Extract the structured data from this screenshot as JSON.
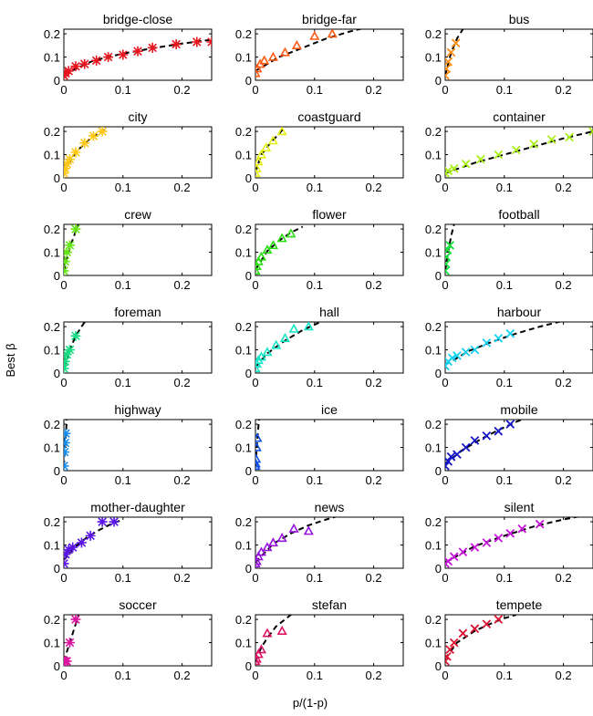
{
  "chart_data": {
    "type": "scatter",
    "xlabel": "p/(1-p)",
    "ylabel": "Best β",
    "xlim": [
      0,
      0.25
    ],
    "ylim": [
      0,
      0.22
    ],
    "xticks": [
      "0",
      "0.1",
      "0.2"
    ],
    "yticks": [
      "0",
      "0.1",
      "0.2"
    ],
    "grid": false,
    "panels": [
      {
        "name": "bridge-close",
        "marker": "star",
        "color": "#e8141e",
        "x": [
          0.0,
          0.003,
          0.008,
          0.02,
          0.035,
          0.055,
          0.075,
          0.1,
          0.125,
          0.15,
          0.19,
          0.225,
          0.25
        ],
        "y": [
          0.02,
          0.03,
          0.04,
          0.06,
          0.07,
          0.085,
          0.1,
          0.11,
          0.125,
          0.14,
          0.155,
          0.165,
          0.165
        ],
        "fit": [
          [
            0,
            0.025
          ],
          [
            0.05,
            0.085
          ],
          [
            0.1,
            0.115
          ],
          [
            0.15,
            0.138
          ],
          [
            0.2,
            0.158
          ],
          [
            0.25,
            0.175
          ]
        ]
      },
      {
        "name": "bridge-far",
        "marker": "triangle",
        "color": "#ff5a14",
        "x": [
          0.0,
          0.003,
          0.008,
          0.015,
          0.03,
          0.05,
          0.07,
          0.1,
          0.13
        ],
        "y": [
          0.03,
          0.05,
          0.07,
          0.085,
          0.1,
          0.12,
          0.15,
          0.19,
          0.2
        ],
        "fit": [
          [
            0,
            0.04
          ],
          [
            0.04,
            0.1
          ],
          [
            0.08,
            0.14
          ],
          [
            0.12,
            0.18
          ],
          [
            0.16,
            0.21
          ],
          [
            0.2,
            0.235
          ]
        ]
      },
      {
        "name": "bus",
        "marker": "cross",
        "color": "#ff8c14",
        "x": [
          0.0,
          0.002,
          0.005,
          0.01,
          0.018
        ],
        "y": [
          0.02,
          0.05,
          0.08,
          0.12,
          0.16
        ],
        "fit": [
          [
            0,
            0.02
          ],
          [
            0.01,
            0.12
          ],
          [
            0.02,
            0.18
          ],
          [
            0.03,
            0.22
          ],
          [
            0.035,
            0.24
          ]
        ]
      },
      {
        "name": "city",
        "marker": "star",
        "color": "#ffc814",
        "x": [
          0.0,
          0.002,
          0.005,
          0.01,
          0.02,
          0.035,
          0.05,
          0.065
        ],
        "y": [
          0.02,
          0.04,
          0.06,
          0.08,
          0.11,
          0.15,
          0.18,
          0.2
        ],
        "fit": [
          [
            0,
            0.025
          ],
          [
            0.02,
            0.11
          ],
          [
            0.04,
            0.16
          ],
          [
            0.06,
            0.195
          ],
          [
            0.07,
            0.21
          ]
        ]
      },
      {
        "name": "coastguard",
        "marker": "triangle",
        "color": "#e6f014",
        "x": [
          0.0,
          0.002,
          0.005,
          0.01,
          0.018,
          0.03,
          0.045
        ],
        "y": [
          0.02,
          0.04,
          0.07,
          0.1,
          0.13,
          0.16,
          0.2
        ],
        "fit": [
          [
            0,
            0.025
          ],
          [
            0.01,
            0.1
          ],
          [
            0.025,
            0.15
          ],
          [
            0.04,
            0.19
          ],
          [
            0.05,
            0.22
          ]
        ]
      },
      {
        "name": "container",
        "marker": "cross",
        "color": "#aaf014",
        "x": [
          0.0,
          0.005,
          0.015,
          0.035,
          0.06,
          0.09,
          0.12,
          0.15,
          0.18,
          0.21,
          0.25
        ],
        "y": [
          0.02,
          0.03,
          0.04,
          0.06,
          0.08,
          0.1,
          0.12,
          0.145,
          0.165,
          0.175,
          0.2
        ],
        "fit": [
          [
            0,
            0.02
          ],
          [
            0.05,
            0.065
          ],
          [
            0.1,
            0.1
          ],
          [
            0.15,
            0.135
          ],
          [
            0.2,
            0.17
          ],
          [
            0.25,
            0.2
          ]
        ]
      },
      {
        "name": "crew",
        "marker": "star",
        "color": "#64e614",
        "x": [
          0.0,
          0.002,
          0.005,
          0.01,
          0.02
        ],
        "y": [
          0.02,
          0.06,
          0.1,
          0.13,
          0.2
        ],
        "fit": [
          [
            0,
            0.02
          ],
          [
            0.01,
            0.12
          ],
          [
            0.02,
            0.19
          ],
          [
            0.025,
            0.22
          ],
          [
            0.028,
            0.235
          ]
        ]
      },
      {
        "name": "flower",
        "marker": "triangle",
        "color": "#2ade14",
        "x": [
          0.0,
          0.002,
          0.005,
          0.01,
          0.02,
          0.03,
          0.045,
          0.06
        ],
        "y": [
          0.02,
          0.04,
          0.06,
          0.08,
          0.11,
          0.13,
          0.16,
          0.18
        ],
        "fit": [
          [
            0,
            0.025
          ],
          [
            0.02,
            0.105
          ],
          [
            0.04,
            0.15
          ],
          [
            0.06,
            0.185
          ],
          [
            0.08,
            0.21
          ]
        ]
      },
      {
        "name": "football",
        "marker": "cross",
        "color": "#14dc3c",
        "x": [
          0.0,
          0.001,
          0.002,
          0.004,
          0.008
        ],
        "y": [
          0.02,
          0.05,
          0.08,
          0.11,
          0.13
        ],
        "fit": [
          [
            0,
            0.02
          ],
          [
            0.005,
            0.1
          ],
          [
            0.01,
            0.17
          ],
          [
            0.015,
            0.22
          ],
          [
            0.018,
            0.245
          ]
        ]
      },
      {
        "name": "foreman",
        "marker": "star",
        "color": "#14dc82",
        "x": [
          0.0,
          0.002,
          0.005,
          0.01,
          0.02
        ],
        "y": [
          0.02,
          0.05,
          0.08,
          0.1,
          0.16
        ],
        "fit": [
          [
            0,
            0.02
          ],
          [
            0.01,
            0.1
          ],
          [
            0.02,
            0.16
          ],
          [
            0.03,
            0.2
          ],
          [
            0.038,
            0.23
          ]
        ]
      },
      {
        "name": "hall",
        "marker": "triangle",
        "color": "#14e6c8",
        "x": [
          0.0,
          0.002,
          0.005,
          0.01,
          0.02,
          0.035,
          0.05,
          0.065,
          0.09
        ],
        "y": [
          0.02,
          0.04,
          0.055,
          0.07,
          0.09,
          0.12,
          0.15,
          0.19,
          0.2
        ],
        "fit": [
          [
            0,
            0.025
          ],
          [
            0.02,
            0.085
          ],
          [
            0.05,
            0.14
          ],
          [
            0.08,
            0.185
          ],
          [
            0.11,
            0.22
          ]
        ]
      },
      {
        "name": "harbour",
        "marker": "cross",
        "color": "#14d2f0",
        "x": [
          0.0,
          0.005,
          0.012,
          0.02,
          0.035,
          0.05,
          0.07,
          0.09,
          0.11
        ],
        "y": [
          0.03,
          0.05,
          0.065,
          0.075,
          0.09,
          0.1,
          0.13,
          0.15,
          0.17
        ],
        "fit": [
          [
            0,
            0.035
          ],
          [
            0.04,
            0.095
          ],
          [
            0.08,
            0.135
          ],
          [
            0.12,
            0.17
          ],
          [
            0.16,
            0.2
          ],
          [
            0.2,
            0.225
          ]
        ]
      },
      {
        "name": "highway",
        "marker": "star",
        "color": "#148cf0",
        "x": [
          0.0,
          0.001,
          0.002,
          0.003
        ],
        "y": [
          0.02,
          0.08,
          0.12,
          0.16
        ],
        "fit": [
          [
            0,
            0.02
          ],
          [
            0.002,
            0.1
          ],
          [
            0.004,
            0.18
          ],
          [
            0.005,
            0.22
          ],
          [
            0.0055,
            0.24
          ]
        ]
      },
      {
        "name": "ice",
        "marker": "triangle",
        "color": "#1450e6",
        "x": [
          0.0,
          0.0005,
          0.001,
          0.002,
          0.003
        ],
        "y": [
          0.02,
          0.03,
          0.05,
          0.1,
          0.14
        ],
        "fit": [
          [
            0,
            0.02
          ],
          [
            0.002,
            0.09
          ],
          [
            0.004,
            0.16
          ],
          [
            0.006,
            0.22
          ],
          [
            0.007,
            0.245
          ]
        ]
      },
      {
        "name": "mobile",
        "marker": "cross",
        "color": "#1414c8",
        "x": [
          0.0,
          0.005,
          0.01,
          0.02,
          0.035,
          0.05,
          0.07,
          0.09,
          0.11
        ],
        "y": [
          0.02,
          0.04,
          0.06,
          0.07,
          0.1,
          0.13,
          0.15,
          0.17,
          0.2
        ],
        "fit": [
          [
            0,
            0.03
          ],
          [
            0.03,
            0.09
          ],
          [
            0.06,
            0.135
          ],
          [
            0.09,
            0.175
          ],
          [
            0.12,
            0.21
          ],
          [
            0.14,
            0.23
          ]
        ]
      },
      {
        "name": "mother-daughter",
        "marker": "star",
        "color": "#5a14e6",
        "x": [
          0.0,
          0.003,
          0.008,
          0.015,
          0.03,
          0.045,
          0.065,
          0.085
        ],
        "y": [
          0.02,
          0.06,
          0.08,
          0.09,
          0.11,
          0.14,
          0.2,
          0.2
        ],
        "fit": [
          [
            0,
            0.035
          ],
          [
            0.02,
            0.095
          ],
          [
            0.04,
            0.135
          ],
          [
            0.06,
            0.165
          ],
          [
            0.08,
            0.19
          ],
          [
            0.1,
            0.21
          ]
        ]
      },
      {
        "name": "news",
        "marker": "triangle",
        "color": "#9614dc",
        "x": [
          0.0,
          0.002,
          0.005,
          0.01,
          0.02,
          0.03,
          0.045,
          0.065,
          0.09
        ],
        "y": [
          0.02,
          0.03,
          0.05,
          0.07,
          0.09,
          0.11,
          0.13,
          0.17,
          0.16
        ],
        "fit": [
          [
            0,
            0.025
          ],
          [
            0.03,
            0.105
          ],
          [
            0.06,
            0.15
          ],
          [
            0.09,
            0.185
          ],
          [
            0.12,
            0.21
          ],
          [
            0.14,
            0.225
          ]
        ]
      },
      {
        "name": "silent",
        "marker": "cross",
        "color": "#c814dc",
        "x": [
          0.0,
          0.005,
          0.015,
          0.03,
          0.05,
          0.07,
          0.09,
          0.11,
          0.13,
          0.16
        ],
        "y": [
          0.02,
          0.03,
          0.05,
          0.07,
          0.09,
          0.11,
          0.13,
          0.15,
          0.17,
          0.19
        ],
        "fit": [
          [
            0,
            0.025
          ],
          [
            0.05,
            0.095
          ],
          [
            0.1,
            0.14
          ],
          [
            0.15,
            0.18
          ],
          [
            0.2,
            0.21
          ],
          [
            0.24,
            0.23
          ]
        ]
      },
      {
        "name": "soccer",
        "marker": "star",
        "color": "#dc14a0",
        "x": [
          0.0,
          0.002,
          0.005,
          0.01,
          0.02
        ],
        "y": [
          0.02,
          0.02,
          0.02,
          0.1,
          0.2
        ],
        "fit": [
          [
            0,
            0.02
          ],
          [
            0.01,
            0.1
          ],
          [
            0.02,
            0.18
          ],
          [
            0.025,
            0.22
          ],
          [
            0.028,
            0.24
          ]
        ]
      },
      {
        "name": "stefan",
        "marker": "triangle",
        "color": "#dc1464",
        "x": [
          0.0,
          0.002,
          0.005,
          0.01,
          0.02,
          0.045
        ],
        "y": [
          0.02,
          0.03,
          0.05,
          0.07,
          0.14,
          0.15
        ],
        "fit": [
          [
            0,
            0.02
          ],
          [
            0.01,
            0.08
          ],
          [
            0.02,
            0.12
          ],
          [
            0.035,
            0.17
          ],
          [
            0.05,
            0.2
          ],
          [
            0.06,
            0.22
          ]
        ]
      },
      {
        "name": "tempete",
        "marker": "cross",
        "color": "#dc1432",
        "x": [
          0.0,
          0.003,
          0.008,
          0.015,
          0.03,
          0.05,
          0.07,
          0.09
        ],
        "y": [
          0.02,
          0.04,
          0.07,
          0.1,
          0.14,
          0.16,
          0.18,
          0.2
        ],
        "fit": [
          [
            0,
            0.03
          ],
          [
            0.02,
            0.1
          ],
          [
            0.05,
            0.15
          ],
          [
            0.08,
            0.185
          ],
          [
            0.1,
            0.205
          ],
          [
            0.12,
            0.22
          ]
        ]
      }
    ]
  }
}
